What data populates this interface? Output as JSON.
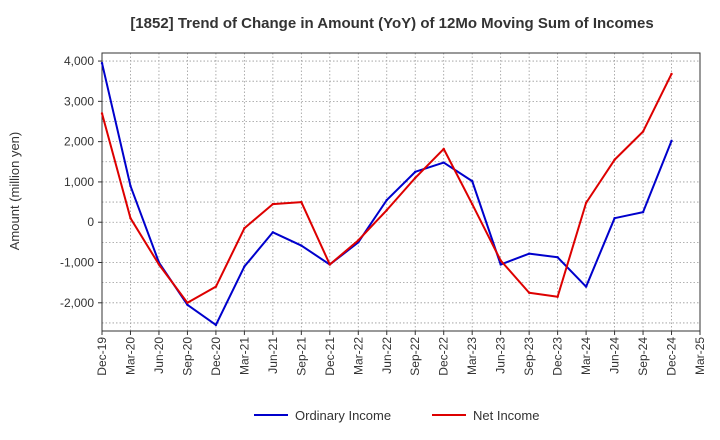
{
  "chart_data": {
    "type": "line",
    "title": "[1852]  Trend of Change in Amount (YoY) of 12Mo Moving Sum of Incomes",
    "ylabel": "Amount (million yen)",
    "xlabel": "",
    "ylim": [
      -2700,
      4200
    ],
    "y_ticks": [
      4000,
      3000,
      2000,
      1000,
      0,
      -1000,
      -2000
    ],
    "y_tick_labels": [
      "4,000",
      "3,000",
      "2,000",
      "1,000",
      "0",
      "-1,000",
      "-2,000"
    ],
    "categories": [
      "Dec-19",
      "Mar-20",
      "Jun-20",
      "Sep-20",
      "Dec-20",
      "Mar-21",
      "Jun-21",
      "Sep-21",
      "Dec-21",
      "Mar-22",
      "Jun-22",
      "Sep-22",
      "Dec-22",
      "Mar-23",
      "Jun-23",
      "Sep-23",
      "Dec-23",
      "Mar-24",
      "Jun-24",
      "Sep-24",
      "Dec-24",
      "Mar-25"
    ],
    "grid": true,
    "legend_position": "bottom",
    "series": [
      {
        "name": "Ordinary Income",
        "color": "#0000cc",
        "values": [
          3950,
          900,
          -1000,
          -2050,
          -2550,
          -1100,
          -250,
          -580,
          -1050,
          -500,
          550,
          1250,
          1480,
          1020,
          -1050,
          -780,
          -870,
          -1600,
          100,
          250,
          2020,
          null
        ]
      },
      {
        "name": "Net Income",
        "color": "#dd0000",
        "values": [
          2700,
          100,
          -1050,
          -2000,
          -1600,
          -150,
          450,
          500,
          -1050,
          -450,
          300,
          1100,
          1820,
          450,
          -950,
          -1750,
          -1850,
          480,
          1550,
          2250,
          3680,
          null
        ]
      }
    ]
  }
}
